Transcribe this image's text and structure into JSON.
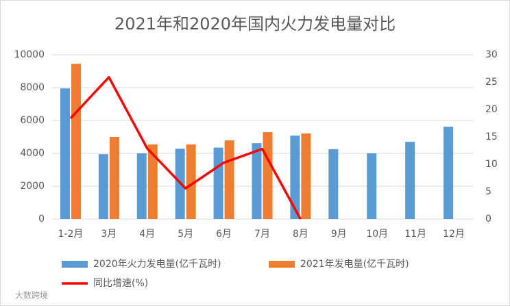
{
  "chart_data": {
    "type": "bar-line",
    "title": "2021年和2020年国内火力发电量对比",
    "categories": [
      "1-2月",
      "3月",
      "4月",
      "5月",
      "6月",
      "7月",
      "8月",
      "9月",
      "10月",
      "11月",
      "12月"
    ],
    "series": [
      {
        "name": "2020年火力发电量(亿千瓦时)",
        "color": "#5b9bd5",
        "kind": "bar",
        "values": [
          7950,
          3950,
          4000,
          4280,
          4350,
          4620,
          5080,
          4250,
          4000,
          4700,
          5620
        ]
      },
      {
        "name": "2021年发电量(亿千瓦时)",
        "color": "#ed7d31",
        "kind": "bar",
        "values": [
          9450,
          5000,
          4540,
          4540,
          4790,
          5290,
          5210,
          null,
          null,
          null,
          null
        ]
      },
      {
        "name": "同比增速(%)",
        "color": "#ff0000",
        "kind": "line",
        "axis": "y2",
        "values": [
          18.4,
          25.9,
          12.9,
          5.6,
          10.3,
          12.8,
          0,
          null,
          null,
          null,
          null
        ]
      }
    ],
    "ylim": [
      0,
      10000
    ],
    "yticks": [
      0,
      2000,
      4000,
      6000,
      8000,
      10000
    ],
    "y2lim": [
      0,
      30
    ],
    "y2ticks": [
      0,
      5,
      10,
      15,
      20,
      25,
      30
    ],
    "grid": true,
    "watermark": "大数跨境"
  }
}
